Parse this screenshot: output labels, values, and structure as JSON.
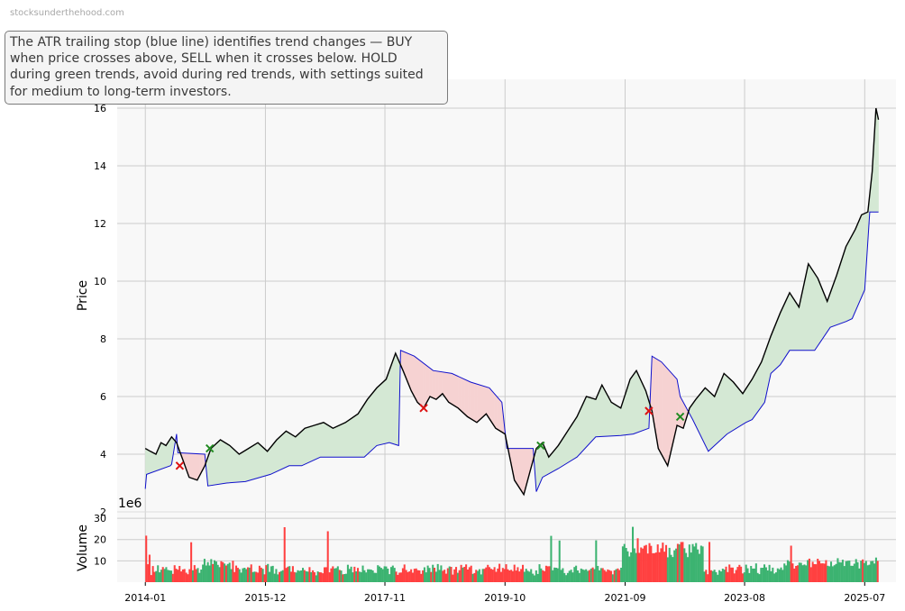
{
  "watermark": "stocksunderthehood.com",
  "note": "The ATR trailing stop (blue line) identifies trend changes — BUY when price crosses above, SELL when it crosses below. HOLD during green trends, avoid during red trends, with settings suited for medium to long-term investors.",
  "colors": {
    "price": "#000000",
    "stop": "#1010cc",
    "bull_fill": "#d4e8d4",
    "bear_fill": "#f6d2d2",
    "buy_marker": "#228b22",
    "sell_marker": "#dd1111",
    "volume_up": "#3cb371",
    "volume_down": "#ff4040",
    "plot_bg": "#f8f8f8",
    "grid": "#cccccc"
  },
  "chart_data": {
    "type": "line",
    "price_panel": {
      "ylabel": "Price",
      "ylim": [
        2,
        17
      ],
      "yticks": [
        2,
        4,
        6,
        8,
        10,
        12,
        14,
        16
      ],
      "xlim": [
        2013.55,
        2026.0
      ],
      "grid": true,
      "series": [
        {
          "role": "price",
          "x": [
            2014.0,
            2014.08,
            2014.17,
            2014.25,
            2014.33,
            2014.42,
            2014.5,
            2014.6,
            2014.7,
            2014.83,
            2014.95,
            2015.05,
            2015.2,
            2015.35,
            2015.5,
            2015.65,
            2015.8,
            2015.95,
            2016.1,
            2016.25,
            2016.4,
            2016.55,
            2016.7,
            2016.85,
            2017.0,
            2017.2,
            2017.4,
            2017.55,
            2017.7,
            2017.85,
            2018.0,
            2018.12,
            2018.25,
            2018.35,
            2018.45,
            2018.55,
            2018.65,
            2018.75,
            2018.85,
            2019.0,
            2019.15,
            2019.3,
            2019.45,
            2019.6,
            2019.75,
            2019.9,
            2020.05,
            2020.15,
            2020.25,
            2020.35,
            2020.45,
            2020.6,
            2020.75,
            2020.9,
            2021.05,
            2021.2,
            2021.3,
            2021.45,
            2021.6,
            2021.75,
            2021.85,
            2022.0,
            2022.1,
            2022.2,
            2022.35,
            2022.5,
            2022.6,
            2022.7,
            2022.8,
            2022.95,
            2023.1,
            2023.25,
            2023.4,
            2023.55,
            2023.7,
            2023.85,
            2024.0,
            2024.15,
            2024.3,
            2024.45,
            2024.6,
            2024.75,
            2024.9,
            2025.05,
            2025.2,
            2025.35,
            2025.45,
            2025.55,
            2025.62,
            2025.68,
            2025.72
          ],
          "y": [
            4.2,
            4.1,
            4.0,
            4.4,
            4.3,
            4.6,
            4.4,
            3.8,
            3.2,
            3.1,
            3.6,
            4.2,
            4.5,
            4.3,
            4.0,
            4.2,
            4.4,
            4.1,
            4.5,
            4.8,
            4.6,
            4.9,
            5.0,
            5.1,
            4.9,
            5.1,
            5.4,
            5.9,
            6.3,
            6.6,
            7.5,
            6.9,
            6.2,
            5.8,
            5.6,
            6.0,
            5.9,
            6.1,
            5.8,
            5.6,
            5.3,
            5.1,
            5.4,
            4.9,
            4.7,
            3.1,
            2.6,
            3.4,
            4.2,
            4.4,
            3.9,
            4.3,
            4.8,
            5.3,
            6.0,
            5.9,
            6.4,
            5.8,
            5.6,
            6.6,
            6.9,
            6.2,
            5.5,
            4.2,
            3.6,
            5.0,
            4.9,
            5.6,
            5.9,
            6.3,
            6.0,
            6.8,
            6.5,
            6.1,
            6.6,
            7.2,
            8.1,
            8.9,
            9.6,
            9.1,
            10.6,
            10.1,
            9.3,
            10.2,
            11.2,
            11.8,
            12.3,
            12.4,
            13.8,
            16.0,
            15.6
          ]
        },
        {
          "role": "atr_stop",
          "x": [
            2014.0,
            2014.02,
            2014.4,
            2014.42,
            2014.5,
            2014.52,
            2014.95,
            2015.0,
            2015.3,
            2015.6,
            2016.0,
            2016.3,
            2016.5,
            2016.8,
            2017.0,
            2017.3,
            2017.5,
            2017.7,
            2017.9,
            2018.05,
            2018.08,
            2018.3,
            2018.6,
            2018.9,
            2019.2,
            2019.5,
            2019.7,
            2019.78,
            2020.2,
            2020.25,
            2020.35,
            2020.6,
            2020.9,
            2021.2,
            2021.6,
            2021.8,
            2022.05,
            2022.1,
            2022.25,
            2022.5,
            2022.55,
            2022.75,
            2023.0,
            2023.3,
            2023.6,
            2023.7,
            2023.9,
            2024.0,
            2024.15,
            2024.3,
            2024.7,
            2024.95,
            2025.2,
            2025.3,
            2025.5,
            2025.58,
            2025.65,
            2025.72
          ],
          "y": [
            2.8,
            3.3,
            3.6,
            3.65,
            4.7,
            4.05,
            4.0,
            2.9,
            3.0,
            3.05,
            3.3,
            3.6,
            3.6,
            3.9,
            3.9,
            3.9,
            3.9,
            4.3,
            4.4,
            4.3,
            7.6,
            7.4,
            6.9,
            6.8,
            6.5,
            6.3,
            5.8,
            4.2,
            4.2,
            2.7,
            3.2,
            3.5,
            3.9,
            4.6,
            4.65,
            4.7,
            4.9,
            7.4,
            7.2,
            6.6,
            6.0,
            5.2,
            4.1,
            4.7,
            5.1,
            5.2,
            5.8,
            6.8,
            7.1,
            7.6,
            7.6,
            8.4,
            8.6,
            8.7,
            9.7,
            12.4,
            12.4,
            12.4
          ]
        }
      ],
      "signals": [
        {
          "type": "SELL",
          "x": 2014.55,
          "y": 3.6
        },
        {
          "type": "BUY",
          "x": 2015.03,
          "y": 4.2
        },
        {
          "type": "SELL",
          "x": 2018.45,
          "y": 5.6
        },
        {
          "type": "BUY",
          "x": 2020.32,
          "y": 4.3
        },
        {
          "type": "SELL",
          "x": 2022.05,
          "y": 5.5
        },
        {
          "type": "BUY",
          "x": 2022.55,
          "y": 5.3
        }
      ]
    },
    "volume_panel": {
      "ylabel": "Volume",
      "scale_label": "1e6",
      "ylim": [
        0,
        33
      ],
      "yticks": [
        10,
        20,
        30
      ],
      "xticks": [
        "2014-01",
        "2015-12",
        "2017-11",
        "2019-10",
        "2021-09",
        "2023-08",
        "2025-07"
      ],
      "xtick_values": [
        2014.0,
        2015.92,
        2017.83,
        2019.75,
        2021.67,
        2023.58,
        2025.5
      ],
      "grid": true
    }
  }
}
